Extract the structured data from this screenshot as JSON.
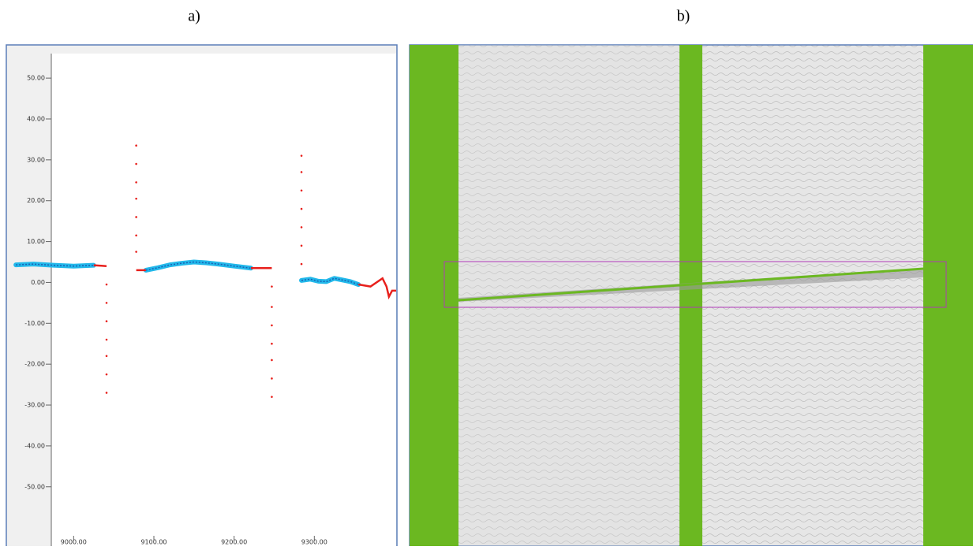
{
  "panel_labels": [
    "a)",
    "b)"
  ],
  "chart_data": {
    "type": "line",
    "xlim": [
      8920,
      9402
    ],
    "ylim": [
      -62,
      56
    ],
    "xticks": [
      {
        "value": 9000,
        "label": "9000.00"
      },
      {
        "value": 9100,
        "label": "9100.00"
      },
      {
        "value": 9200,
        "label": "9200.00"
      },
      {
        "value": 9300,
        "label": "9300.00"
      }
    ],
    "yticks": [
      {
        "value": 50,
        "label": "50.00"
      },
      {
        "value": 40,
        "label": "40.00"
      },
      {
        "value": 30,
        "label": "30.00"
      },
      {
        "value": 20,
        "label": "20.00"
      },
      {
        "value": 10,
        "label": "10.00"
      },
      {
        "value": 0,
        "label": "0.00"
      },
      {
        "value": -10,
        "label": "-10.00"
      },
      {
        "value": -20,
        "label": "-20.00"
      },
      {
        "value": -30,
        "label": "-30.00"
      },
      {
        "value": -40,
        "label": "-40.00"
      },
      {
        "value": -50,
        "label": "-50.00"
      }
    ],
    "series": [
      {
        "color": "#22b8ea",
        "style": "thick-line",
        "x": [
          8928,
          8950,
          8975,
          9000,
          9025,
          null,
          9090,
          9105,
          9120,
          9135,
          9150,
          9165,
          9180,
          9200,
          9221,
          null,
          9284,
          9295,
          9305,
          9315,
          9325,
          9335,
          9345,
          9355
        ],
        "values": [
          4.3,
          4.5,
          4.2,
          4.0,
          4.2,
          null,
          3,
          3.6,
          4.3,
          4.7,
          5,
          4.8,
          4.5,
          4,
          3.5,
          null,
          0.5,
          0.8,
          0.3,
          0.2,
          1,
          0.6,
          0.2,
          -0.5
        ]
      },
      {
        "color": "#e8201c",
        "style": "line",
        "x": [
          9025,
          9041,
          null,
          9078,
          9090,
          null,
          9221,
          9247,
          null,
          9355,
          9370,
          9385,
          9390,
          9393,
          9397,
          9402
        ],
        "values": [
          4.2,
          4,
          null,
          3,
          3,
          null,
          3.5,
          3.5,
          null,
          -0.5,
          -1,
          1,
          -1,
          -3.5,
          -2,
          -2
        ]
      },
      {
        "color": "#e8201c",
        "style": "points",
        "x": [
          9041,
          9041,
          9041,
          9041,
          9041,
          9041,
          9041,
          9078,
          9078,
          9078,
          9078,
          9078,
          9078,
          9078,
          9247,
          9247,
          9247,
          9247,
          9247,
          9247,
          9247,
          9284,
          9284,
          9284,
          9284,
          9284,
          9284,
          9284
        ],
        "values": [
          -0.5,
          -5,
          -9.5,
          -14,
          -18,
          -22.5,
          -27,
          33.5,
          29,
          24.5,
          20.5,
          16,
          11.5,
          7.5,
          -1,
          -6,
          -10.5,
          -15,
          -19,
          -23.5,
          -28,
          31,
          27,
          22.5,
          18,
          13.5,
          9,
          4.5
        ]
      }
    ]
  }
}
